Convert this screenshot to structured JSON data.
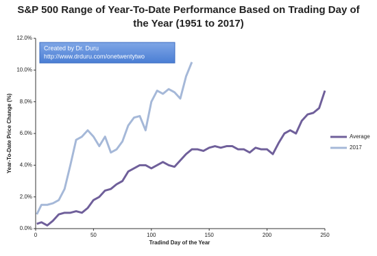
{
  "chart_data": {
    "type": "line",
    "title": "S&P 500 Range of Year-To-Date Performance Based on Trading Day of the Year (1951 to 2017)",
    "xlabel": "Tradind Day of the Year",
    "ylabel": "Year-To-Date Price Change (%)",
    "annotation": [
      "Created by Dr. Duru",
      "http://www.drduru.com/onetwentytwo"
    ],
    "x": [
      1,
      5,
      10,
      15,
      20,
      25,
      30,
      35,
      40,
      45,
      50,
      55,
      60,
      65,
      70,
      75,
      80,
      85,
      90,
      95,
      100,
      105,
      110,
      115,
      120,
      125,
      130,
      135,
      140,
      145,
      150,
      155,
      160,
      165,
      170,
      175,
      180,
      185,
      190,
      195,
      200,
      205,
      210,
      215,
      220,
      225,
      230,
      235,
      240,
      245,
      250
    ],
    "series": [
      {
        "name": "Average",
        "color": "#6f5f9a",
        "values": [
          0.3,
          0.4,
          0.2,
          0.5,
          0.9,
          1.0,
          1.0,
          1.1,
          1.0,
          1.3,
          1.8,
          2.0,
          2.4,
          2.5,
          2.8,
          3.0,
          3.6,
          3.8,
          4.0,
          4.0,
          3.8,
          4.0,
          4.2,
          4.0,
          3.9,
          4.3,
          4.7,
          5.0,
          5.0,
          4.9,
          5.1,
          5.2,
          5.1,
          5.2,
          5.2,
          5.0,
          5.0,
          4.8,
          5.1,
          5.0,
          5.0,
          4.7,
          5.4,
          6.0,
          6.2,
          6.0,
          6.8,
          7.2,
          7.3,
          7.6,
          8.7
        ]
      },
      {
        "name": "2017",
        "color": "#a5b8d8",
        "values": [
          0.9,
          1.5,
          1.5,
          1.6,
          1.8,
          2.5,
          4.0,
          5.6,
          5.8,
          6.2,
          5.8,
          5.2,
          5.8,
          4.8,
          5.0,
          5.5,
          6.5,
          7.0,
          7.1,
          6.2,
          8.0,
          8.7,
          8.5,
          8.8,
          8.6,
          8.2,
          9.6,
          10.5,
          null,
          null,
          null,
          null,
          null,
          null,
          null,
          null,
          null,
          null,
          null,
          null,
          null,
          null,
          null,
          null,
          null,
          null,
          null,
          null,
          null,
          null,
          null
        ]
      }
    ],
    "xlim": [
      0,
      250
    ],
    "xticks": [
      0,
      50,
      100,
      150,
      200,
      250
    ],
    "ylim": [
      0,
      12
    ],
    "yticks": [
      {
        "value": 0,
        "label": "0.0%"
      },
      {
        "value": 2,
        "label": "2.0%"
      },
      {
        "value": 4,
        "label": "4.0%"
      },
      {
        "value": 6,
        "label": "6.0%"
      },
      {
        "value": 8,
        "label": "8.0%"
      },
      {
        "value": 10,
        "label": "10.0%"
      },
      {
        "value": 12,
        "label": "12.0%"
      }
    ],
    "grid": false,
    "legend": "right"
  }
}
